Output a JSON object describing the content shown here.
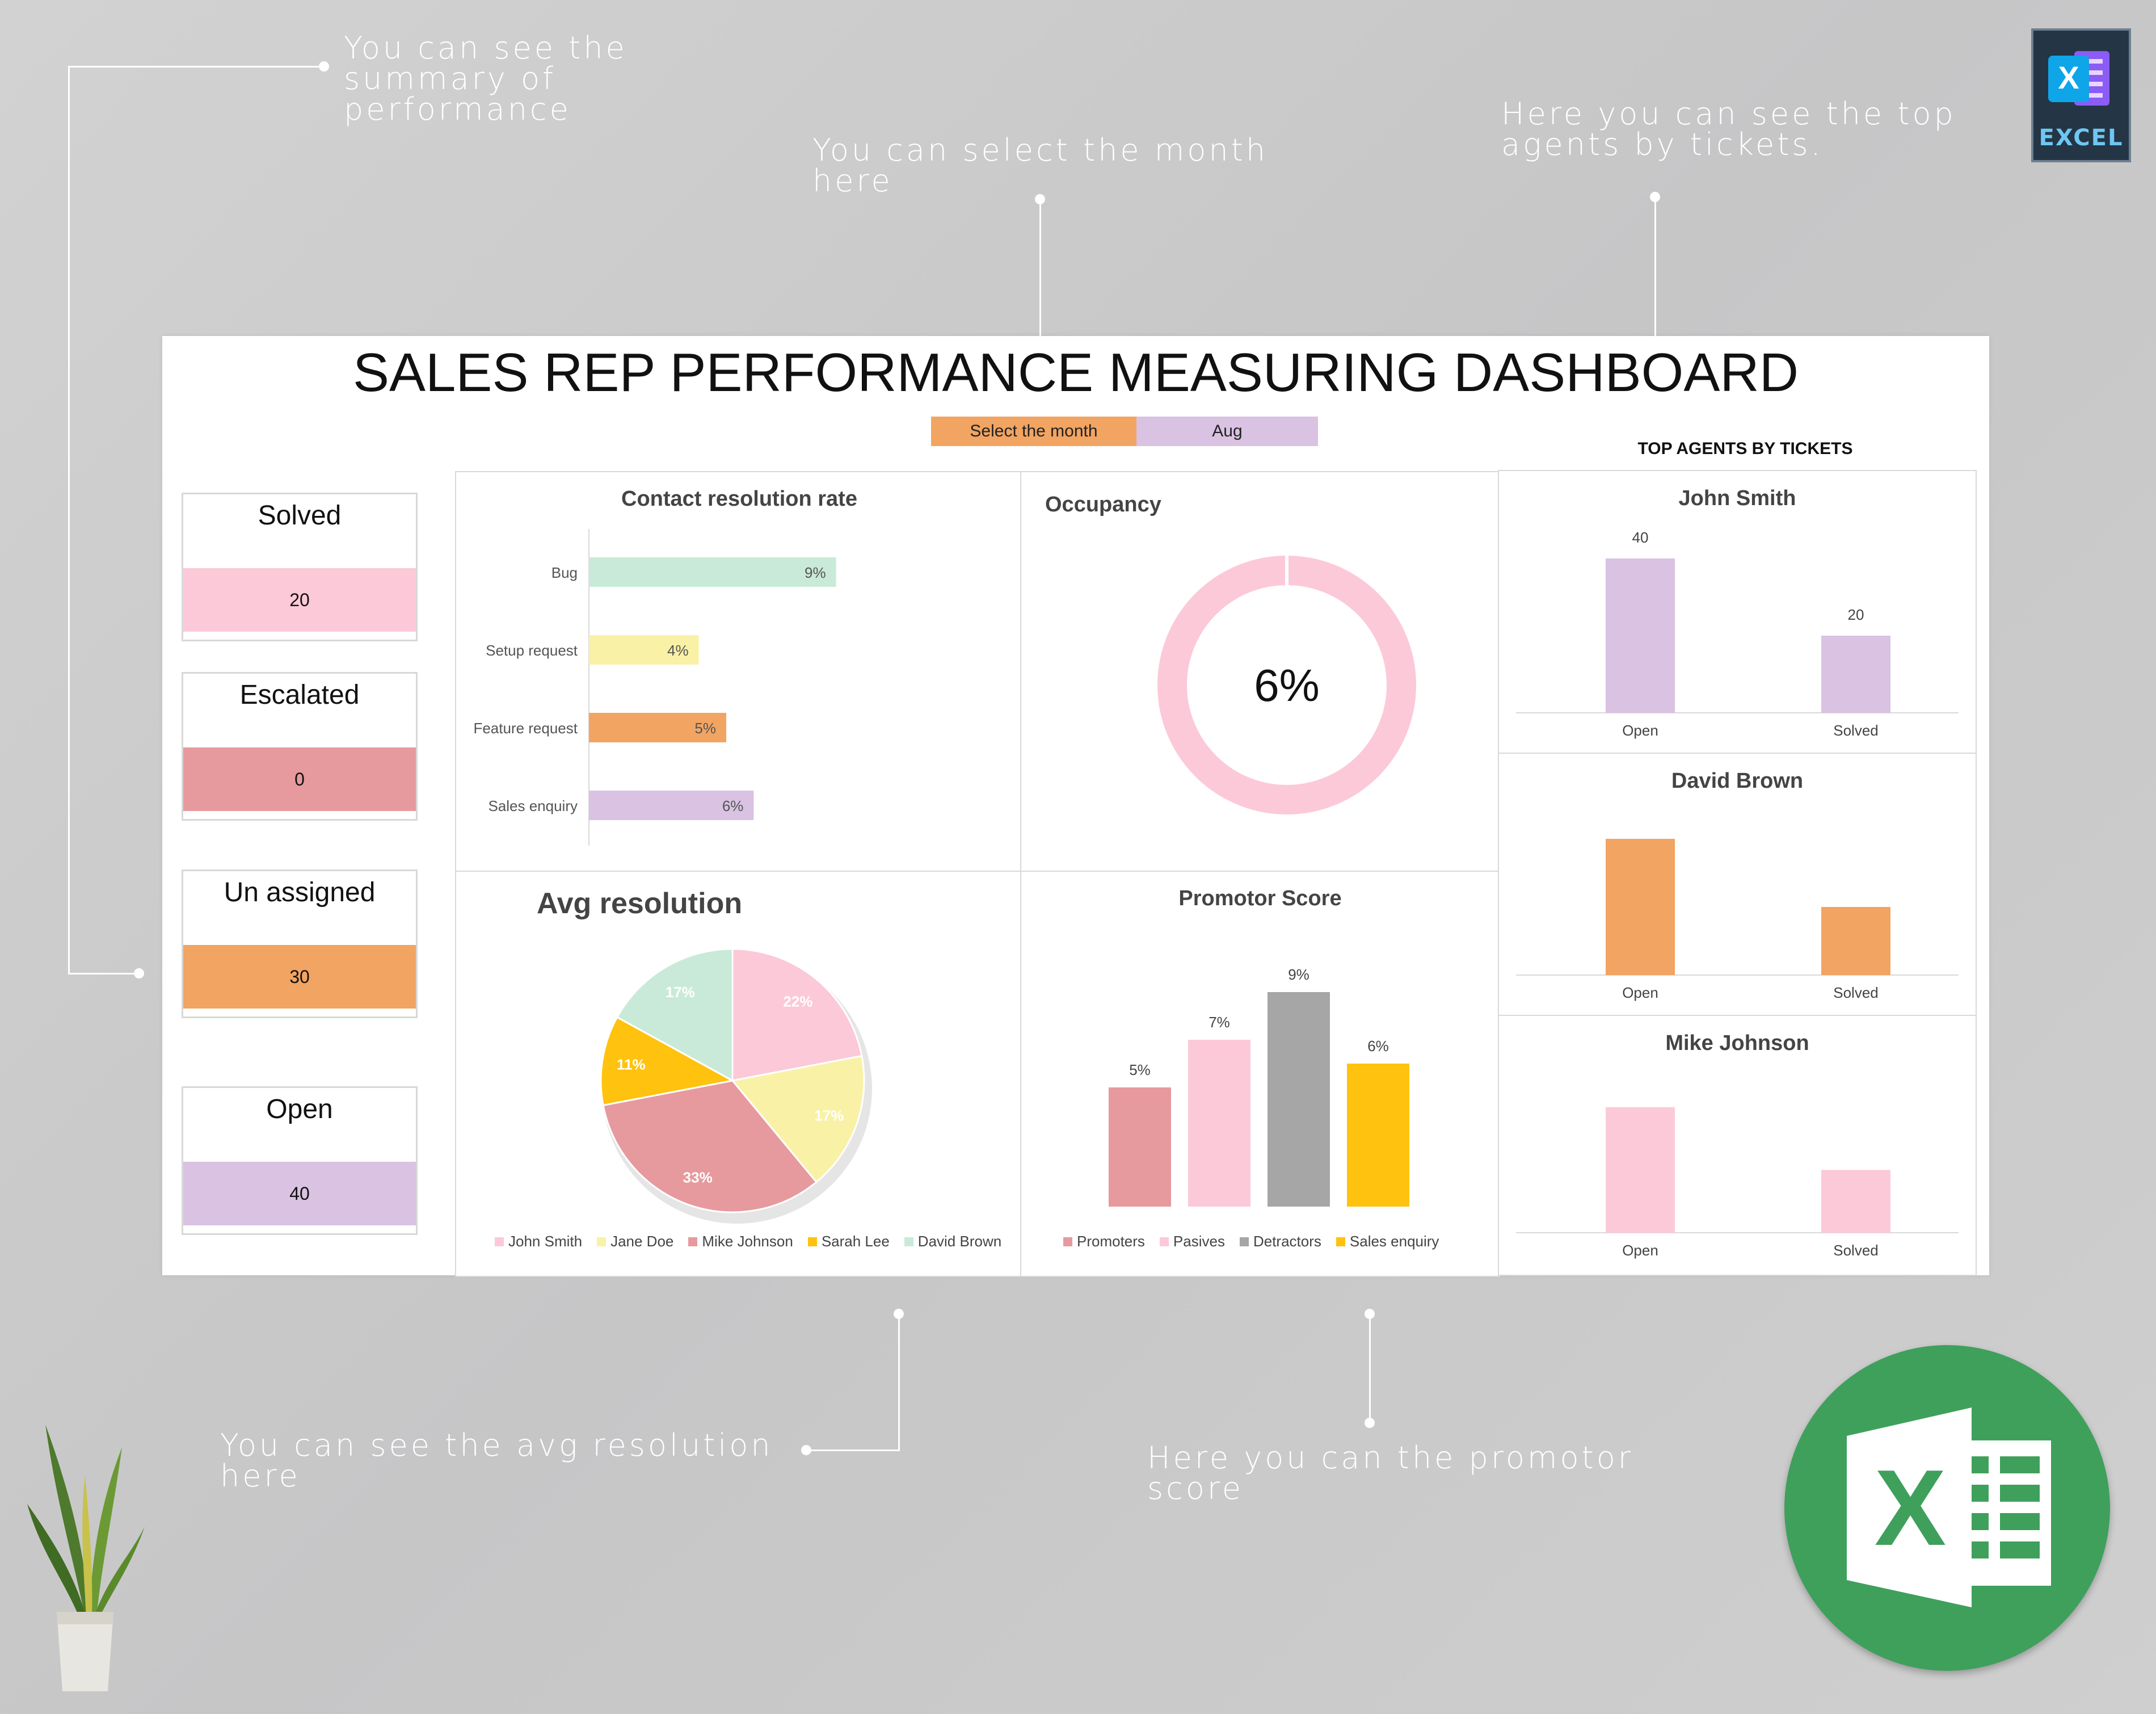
{
  "annotations": {
    "summary": "You can see the summary of performance",
    "select_month": "You can select the month here",
    "top_agents": "Here you can see the top agents by tickets.",
    "avg_resolution": "You can see the avg resolution here",
    "promotor_score": "Here you can the promotor score"
  },
  "badge": {
    "label": "EXCEL",
    "letter": "X"
  },
  "excel_logo": {
    "letter": "X"
  },
  "dashboard": {
    "title": "SALES REP PERFORMANCE MEASURING DASHBOARD",
    "month_selector": {
      "label": "Select the month",
      "value": "Aug"
    },
    "top_agents_title": "TOP AGENTS BY TICKETS",
    "kpis": [
      {
        "label": "Solved",
        "value": "20",
        "color": "#fcc9d9"
      },
      {
        "label": "Escalated",
        "value": "0",
        "color": "#e69a9e"
      },
      {
        "label": "Un assigned",
        "value": "30",
        "color": "#f2a462"
      },
      {
        "label": "Open",
        "value": "40",
        "color": "#d9c2e2"
      }
    ],
    "panels": {
      "contact_resolution_title": "Contact resolution rate",
      "occupancy_title": "Occupancy",
      "avg_resolution_title": "Avg resolution",
      "promotor_title": "Promotor Score"
    }
  },
  "chart_data": [
    {
      "id": "contact-resolution",
      "type": "bar",
      "orientation": "horizontal",
      "title": "Contact resolution rate",
      "categories": [
        "Bug",
        "Setup request",
        "Feature request",
        "Sales enquiry"
      ],
      "values": [
        9,
        4,
        5,
        6
      ],
      "labels": [
        "9%",
        "4%",
        "5%",
        "6%"
      ],
      "colors": [
        "#c9ead8",
        "#f9f2a6",
        "#f2a462",
        "#d9c2e2"
      ],
      "xlim": [
        0,
        15
      ]
    },
    {
      "id": "occupancy",
      "type": "pie",
      "title": "Occupancy",
      "values": [
        6
      ],
      "center_label": "6%",
      "color": "#fcc9d9"
    },
    {
      "id": "avg-resolution",
      "type": "pie",
      "title": "Avg resolution",
      "categories": [
        "John Smith",
        "Jane Doe",
        "Mike Johnson",
        "Sarah Lee",
        "David Brown"
      ],
      "values": [
        22,
        17,
        33,
        11,
        17
      ],
      "labels": [
        "22%",
        "17%",
        "33%",
        "11%",
        "17%"
      ],
      "colors": [
        "#fcc9d9",
        "#f9f2a6",
        "#e69a9e",
        "#ffc20e",
        "#c9ead8"
      ],
      "legend": "bottom"
    },
    {
      "id": "promotor-score",
      "type": "bar",
      "title": "Promotor Score",
      "categories": [
        "Promoters",
        "Pasives",
        "Detractors",
        "Sales enquiry"
      ],
      "values": [
        5,
        7,
        9,
        6
      ],
      "labels": [
        "5%",
        "7%",
        "9%",
        "6%"
      ],
      "colors": [
        "#e69a9e",
        "#fcc9d9",
        "#a6a6a6",
        "#ffc20e"
      ],
      "ylim": [
        0,
        10
      ],
      "legend": "bottom"
    },
    {
      "id": "agent-john-smith",
      "type": "bar",
      "title": "John Smith",
      "categories": [
        "Open",
        "Solved"
      ],
      "values": [
        40,
        20
      ],
      "labels": [
        "40",
        "20"
      ],
      "color": "#d9c2e2",
      "ylim": [
        0,
        45
      ]
    },
    {
      "id": "agent-david-brown",
      "type": "bar",
      "title": "David Brown",
      "categories": [
        "Open",
        "Solved"
      ],
      "values": [
        40,
        20
      ],
      "color": "#f2a462",
      "ylim": [
        0,
        45
      ]
    },
    {
      "id": "agent-mike-johnson",
      "type": "bar",
      "title": "Mike Johnson",
      "categories": [
        "Open",
        "Solved"
      ],
      "values": [
        38,
        19
      ],
      "color": "#fcc9d9",
      "ylim": [
        0,
        45
      ]
    }
  ]
}
